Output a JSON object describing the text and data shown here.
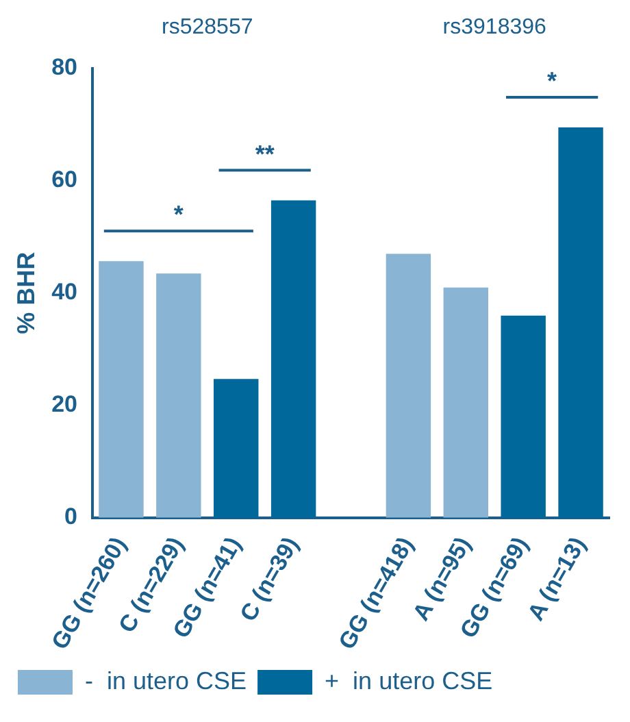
{
  "chart_data": {
    "type": "bar",
    "ylabel": "% BHR",
    "categories": [
      "GG (n=260)",
      "C (n=229)",
      "GG (n=41)",
      "C (n=39)",
      null,
      "GG (n=418)",
      "A (n=95)",
      "GG (n=69)",
      "A (n=13)"
    ],
    "series": [
      {
        "name": "-  in utero CSE",
        "color": "#8ab4d4",
        "values": [
          45.7,
          43.5,
          null,
          null,
          null,
          47,
          41,
          null,
          null
        ]
      },
      {
        "name": "+  in utero CSE",
        "color": "#00689a",
        "values": [
          null,
          null,
          24.7,
          56.5,
          null,
          null,
          null,
          36,
          69.5
        ]
      }
    ],
    "ylim": [
      0,
      80
    ],
    "yticks": [
      0,
      20,
      40,
      60,
      80
    ],
    "grid": false,
    "legend": "bottom left",
    "annotations": [
      "rs528557",
      "rs3918396",
      "*",
      "**",
      "*"
    ]
  }
}
